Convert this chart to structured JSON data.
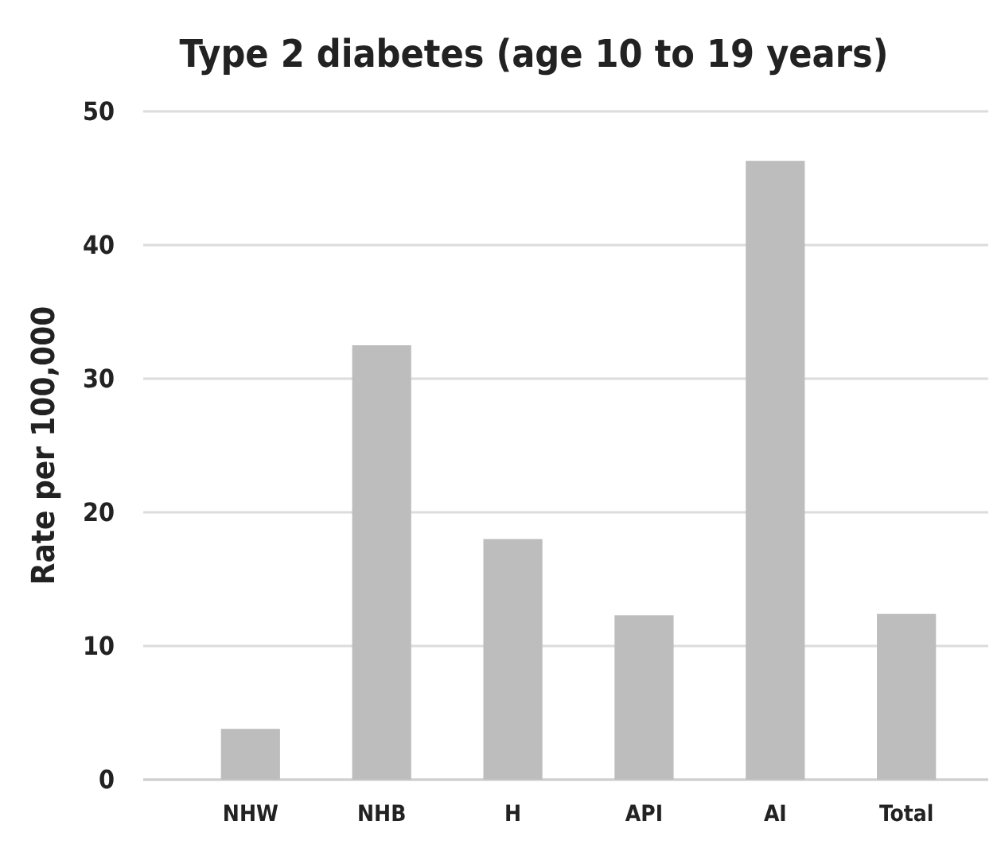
{
  "chart_data": {
    "type": "bar",
    "title": "Type 2 diabetes (age 10 to 19 years)",
    "ylabel": "Rate per 100,000",
    "categories": [
      "NHW",
      "NHB",
      "H",
      "API",
      "AI",
      "Total"
    ],
    "values": [
      3.8,
      32.5,
      18.0,
      12.3,
      46.3,
      12.4
    ],
    "color": "#bdbdbd",
    "ylim": [
      0,
      50
    ],
    "yticks": [
      0,
      10,
      20,
      30,
      40,
      50
    ],
    "grid": "y"
  }
}
